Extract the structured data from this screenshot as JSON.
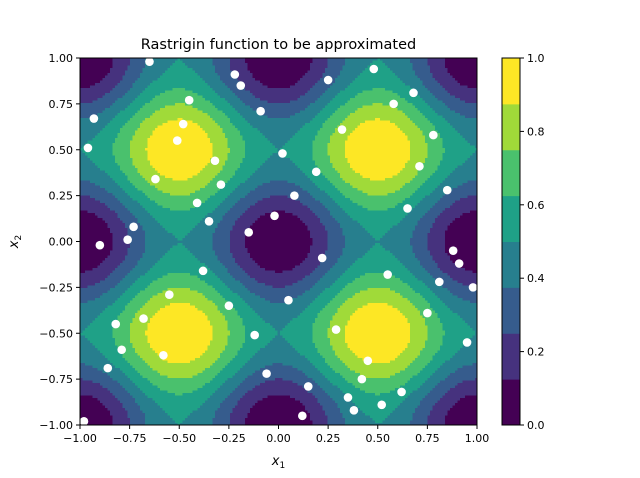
{
  "chart_data": {
    "type": "contour",
    "title": "Rastrigin function to be approximated",
    "xlabel": "x",
    "xlabel_sub": "1",
    "ylabel": "x",
    "ylabel_sub": "2",
    "xlim": [
      -1.0,
      1.0
    ],
    "ylim": [
      -1.0,
      1.0
    ],
    "xticks": [
      -1.0,
      -0.75,
      -0.5,
      -0.25,
      0.0,
      0.25,
      0.5,
      0.75,
      1.0
    ],
    "xtick_labels": [
      "−1.00",
      "−0.75",
      "−0.50",
      "−0.25",
      "0.00",
      "0.25",
      "0.50",
      "0.75",
      "1.00"
    ],
    "yticks": [
      -1.0,
      -0.75,
      -0.5,
      -0.25,
      0.0,
      0.25,
      0.5,
      0.75,
      1.0
    ],
    "ytick_labels": [
      "−1.00",
      "−0.75",
      "−0.50",
      "−0.25",
      "0.00",
      "0.25",
      "0.50",
      "0.75",
      "1.00"
    ],
    "colorbar": {
      "range": [
        0.0,
        1.0
      ],
      "ticks": [
        0.0,
        0.2,
        0.4,
        0.6,
        0.8,
        1.0
      ],
      "tick_labels": [
        "0.0",
        "0.2",
        "0.4",
        "0.6",
        "0.8",
        "1.0"
      ],
      "colormap": "viridis",
      "levels": 8
    },
    "function": "normalized 2D Rastrigin",
    "scatter_color": "#ffffff",
    "points": [
      [
        -0.98,
        -0.98
      ],
      [
        -0.96,
        0.51
      ],
      [
        -0.93,
        0.67
      ],
      [
        -0.9,
        -0.02
      ],
      [
        -0.86,
        -0.69
      ],
      [
        -0.82,
        -0.45
      ],
      [
        -0.79,
        -0.59
      ],
      [
        -0.76,
        0.01
      ],
      [
        -0.73,
        0.08
      ],
      [
        -0.68,
        -0.42
      ],
      [
        -0.65,
        0.98
      ],
      [
        -0.62,
        0.34
      ],
      [
        -0.58,
        -0.62
      ],
      [
        -0.55,
        -0.29
      ],
      [
        -0.51,
        0.55
      ],
      [
        -0.48,
        0.64
      ],
      [
        -0.45,
        0.77
      ],
      [
        -0.41,
        0.21
      ],
      [
        -0.38,
        -0.16
      ],
      [
        -0.35,
        0.11
      ],
      [
        -0.32,
        0.44
      ],
      [
        -0.29,
        0.31
      ],
      [
        -0.25,
        -0.35
      ],
      [
        -0.22,
        0.91
      ],
      [
        -0.19,
        0.85
      ],
      [
        -0.15,
        0.05
      ],
      [
        -0.12,
        -0.51
      ],
      [
        -0.09,
        0.71
      ],
      [
        -0.06,
        -0.72
      ],
      [
        -0.02,
        0.14
      ],
      [
        0.02,
        0.48
      ],
      [
        0.05,
        -0.32
      ],
      [
        0.08,
        0.25
      ],
      [
        0.12,
        -0.95
      ],
      [
        0.15,
        -0.79
      ],
      [
        0.19,
        0.38
      ],
      [
        0.22,
        -0.09
      ],
      [
        0.25,
        0.88
      ],
      [
        0.29,
        -0.48
      ],
      [
        0.32,
        0.61
      ],
      [
        0.35,
        -0.85
      ],
      [
        0.38,
        -0.92
      ],
      [
        0.42,
        -0.75
      ],
      [
        0.45,
        -0.65
      ],
      [
        0.48,
        0.94
      ],
      [
        0.52,
        -0.89
      ],
      [
        0.55,
        -0.18
      ],
      [
        0.58,
        0.75
      ],
      [
        0.62,
        -0.82
      ],
      [
        0.65,
        0.18
      ],
      [
        0.68,
        0.81
      ],
      [
        0.71,
        0.41
      ],
      [
        0.75,
        -0.39
      ],
      [
        0.78,
        0.58
      ],
      [
        0.81,
        -0.22
      ],
      [
        0.85,
        0.28
      ],
      [
        0.88,
        -0.05
      ],
      [
        0.91,
        -0.12
      ],
      [
        0.95,
        -0.55
      ],
      [
        0.98,
        -0.25
      ]
    ]
  }
}
